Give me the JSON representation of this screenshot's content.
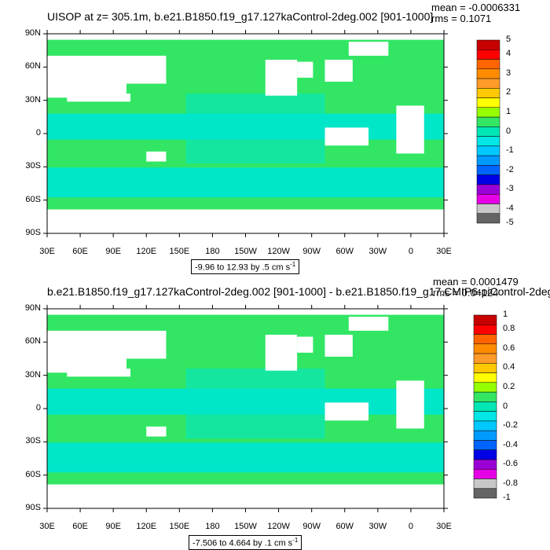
{
  "palette": {
    "water": "#00e6c8",
    "green": "#32e664",
    "land": "#ffffff",
    "colorbar": [
      "#646464",
      "#c8c8c8",
      "#e600e6",
      "#9a00d6",
      "#0000e6",
      "#0064ff",
      "#009bff",
      "#00c8ff",
      "#00e6e6",
      "#00e6b4",
      "#32e664",
      "#96ff00",
      "#ffff00",
      "#ffc800",
      "#ff9b28",
      "#ff8c00",
      "#ff6400",
      "#ff0000",
      "#c80000"
    ]
  },
  "lat_labels": [
    "90N",
    "60N",
    "30N",
    "0",
    "30S",
    "60S",
    "90S"
  ],
  "lon_labels": [
    "30E",
    "60E",
    "90E",
    "120E",
    "150E",
    "180",
    "150W",
    "120W",
    "90W",
    "60W",
    "30W",
    "0",
    "30E"
  ],
  "panels": [
    {
      "title": "UISOP at z= 305.1m, b.e21.B1850.f19_g17.127kaControl-2deg.002 [901-1000]",
      "mean": "mean = -0.0006331",
      "rms": "rms = 0.1071",
      "range": "-9.96 to 12.93 by .5 cm s",
      "range_exp": "-1",
      "colorbar_labels": [
        "5",
        "4",
        "3",
        "2",
        "1",
        "0",
        "-1",
        "-2",
        "-3",
        "-4",
        "-5"
      ]
    },
    {
      "title": "b.e21.B1850.f19_g17.127kaControl-2deg.002 [901-1000] - b.e21.B1850.f19_g17.CMIP6-piControl-2deg.",
      "mean": "mean = 0.0001479",
      "rms": "rms = 0.04124",
      "range": "-7.506 to 4.664 by .1 cm s",
      "range_exp": "-1",
      "colorbar_labels": [
        "1",
        "0.8",
        "0.6",
        "0.4",
        "0.2",
        "0",
        "-0.2",
        "-0.4",
        "-0.6",
        "-0.8",
        "-1"
      ]
    }
  ]
}
